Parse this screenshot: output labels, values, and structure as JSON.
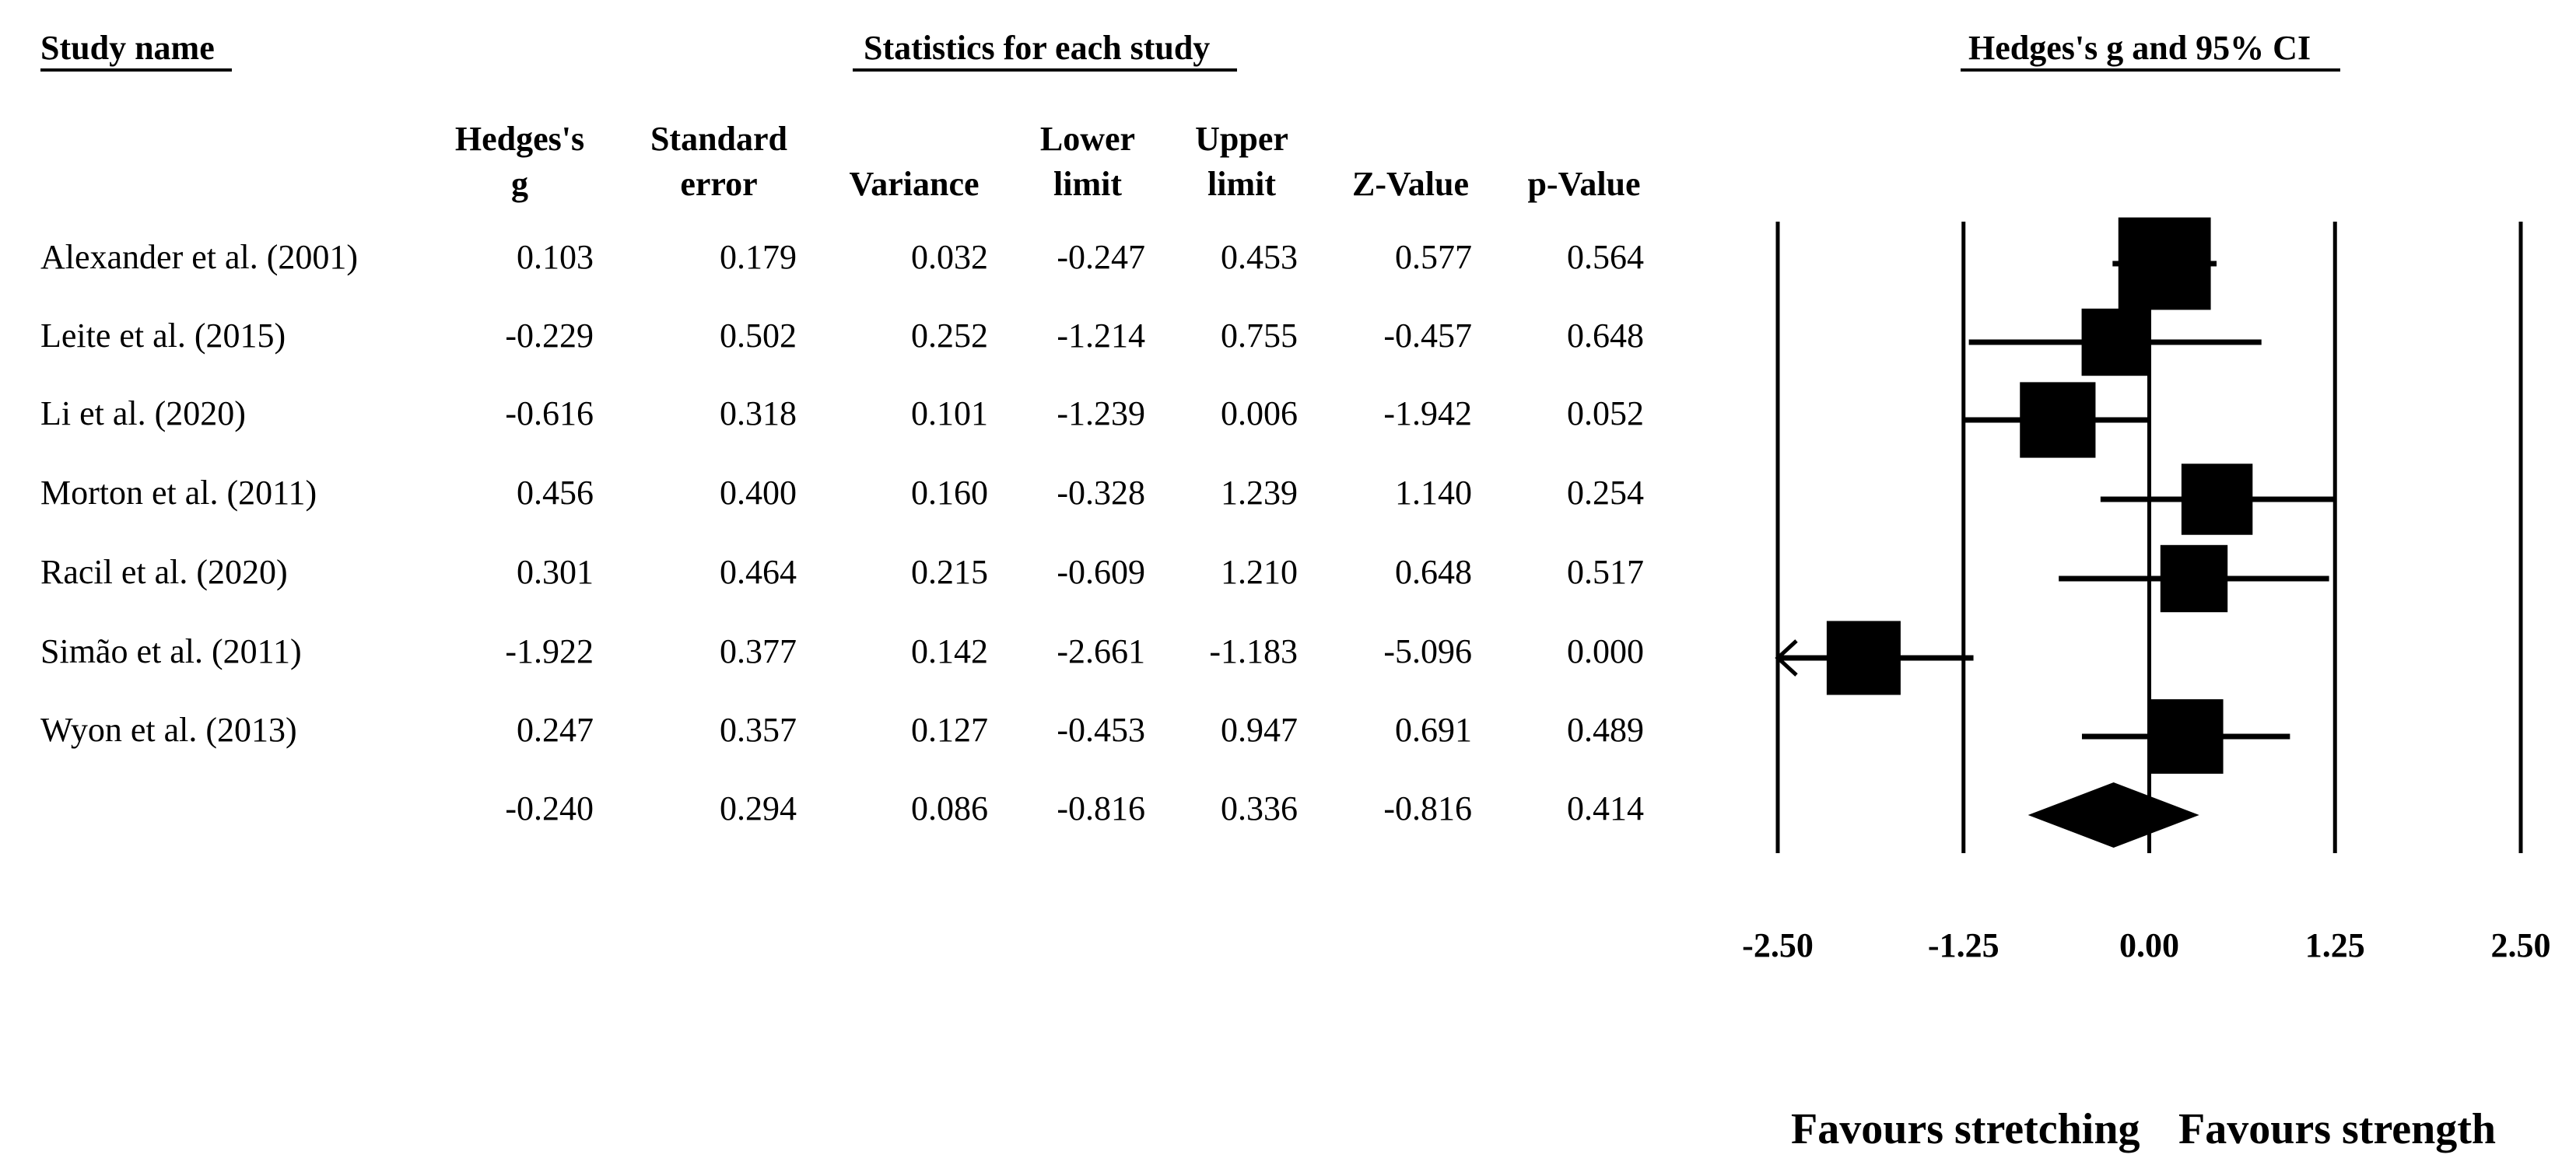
{
  "headers": {
    "study_name": "Study name",
    "statistics": "Statistics for each study",
    "forest_title": "Hedges's g and 95% CI"
  },
  "columns": [
    {
      "line1": "Hedges's",
      "line2": "g"
    },
    {
      "line1": "Standard",
      "line2": "error"
    },
    {
      "line1": "",
      "line2": "Variance"
    },
    {
      "line1": "Lower",
      "line2": "limit"
    },
    {
      "line1": "Upper",
      "line2": "limit"
    },
    {
      "line1": "",
      "line2": "Z-Value"
    },
    {
      "line1": "",
      "line2": "p-Value"
    }
  ],
  "rows": [
    {
      "study": "Alexander et al. (2001)",
      "cells": [
        "0.103",
        "0.179",
        "0.032",
        "-0.247",
        "0.453",
        "0.577",
        "0.564"
      ]
    },
    {
      "study": "Leite et al. (2015)",
      "cells": [
        "-0.229",
        "0.502",
        "0.252",
        "-1.214",
        "0.755",
        "-0.457",
        "0.648"
      ]
    },
    {
      "study": "Li et al. (2020)",
      "cells": [
        "-0.616",
        "0.318",
        "0.101",
        "-1.239",
        "0.006",
        "-1.942",
        "0.052"
      ]
    },
    {
      "study": "Morton et al. (2011)",
      "cells": [
        "0.456",
        "0.400",
        "0.160",
        "-0.328",
        "1.239",
        "1.140",
        "0.254"
      ]
    },
    {
      "study": "Racil et al. (2020)",
      "cells": [
        "0.301",
        "0.464",
        "0.215",
        "-0.609",
        "1.210",
        "0.648",
        "0.517"
      ]
    },
    {
      "study": "Simão et al. (2011)",
      "cells": [
        "-1.922",
        "0.377",
        "0.142",
        "-2.661",
        "-1.183",
        "-5.096",
        "0.000"
      ]
    },
    {
      "study": "Wyon et al. (2013)",
      "cells": [
        "0.247",
        "0.357",
        "0.127",
        "-0.453",
        "0.947",
        "0.691",
        "0.489"
      ]
    }
  ],
  "summary": {
    "study": "",
    "cells": [
      "-0.240",
      "0.294",
      "0.086",
      "-0.816",
      "0.336",
      "-0.816",
      "0.414"
    ]
  },
  "chart_data": {
    "type": "forest",
    "title": "Hedges's g and 95% CI",
    "xlim": [
      -2.5,
      2.5
    ],
    "ticks": [
      -2.5,
      -1.25,
      0.0,
      1.25,
      2.5
    ],
    "tick_labels": [
      "-2.50",
      "-1.25",
      "0.00",
      "1.25",
      "2.50"
    ],
    "studies": [
      {
        "name": "Alexander et al. (2001)",
        "g": 0.103,
        "lower": -0.247,
        "upper": 0.453,
        "weight": 1.65
      },
      {
        "name": "Leite et al. (2015)",
        "g": -0.229,
        "lower": -1.214,
        "upper": 0.755,
        "weight": 1.2
      },
      {
        "name": "Li et al. (2020)",
        "g": -0.616,
        "lower": -1.239,
        "upper": 0.006,
        "weight": 1.35
      },
      {
        "name": "Morton et al. (2011)",
        "g": 0.456,
        "lower": -0.328,
        "upper": 1.239,
        "weight": 1.27
      },
      {
        "name": "Racil et al. (2020)",
        "g": 0.301,
        "lower": -0.609,
        "upper": 1.21,
        "weight": 1.2
      },
      {
        "name": "Simão et al. (2011)",
        "g": -1.922,
        "lower": -2.661,
        "upper": -1.183,
        "weight": 1.32,
        "left_arrow": true
      },
      {
        "name": "Wyon et al. (2013)",
        "g": 0.247,
        "lower": -0.453,
        "upper": 0.947,
        "weight": 1.33
      }
    ],
    "summary": {
      "g": -0.24,
      "lower": -0.816,
      "upper": 0.336
    },
    "favours_left": "Favours stretching",
    "favours_right": "Favours strength",
    "color": "#000000"
  }
}
